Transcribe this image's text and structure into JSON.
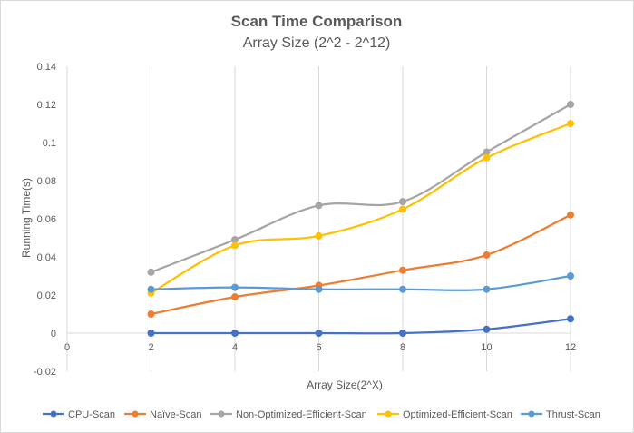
{
  "chart_data": {
    "type": "line",
    "title": "Scan Time Comparison",
    "subtitle": "Array Size (2^2 - 2^12)",
    "xlabel": "Array Size(2^X)",
    "ylabel": "Running Time(s)",
    "xlim": [
      0,
      12
    ],
    "ylim": [
      -0.02,
      0.14
    ],
    "x_ticks": [
      "0",
      "2",
      "4",
      "6",
      "8",
      "10",
      "12"
    ],
    "y_ticks": [
      "-0.02",
      "0",
      "0.02",
      "0.04",
      "0.06",
      "0.08",
      "0.1",
      "0.12",
      "0.14"
    ],
    "grid": "vertical",
    "legend_position": "bottom",
    "x": [
      2,
      4,
      6,
      8,
      10,
      12
    ],
    "series": [
      {
        "name": "CPU-Scan",
        "color": "#4472c4",
        "values": [
          0,
          0,
          0,
          0,
          0.002,
          0.0075
        ]
      },
      {
        "name": "Naïve-Scan",
        "color": "#ed7d31",
        "values": [
          0.01,
          0.019,
          0.025,
          0.033,
          0.041,
          0.062
        ]
      },
      {
        "name": "Non-Optimized-Efficient-Scan",
        "color": "#a5a5a5",
        "values": [
          0.032,
          0.049,
          0.067,
          0.069,
          0.095,
          0.12
        ]
      },
      {
        "name": "Optimized-Efficient-Scan",
        "color": "#ffc000",
        "values": [
          0.021,
          0.046,
          0.051,
          0.065,
          0.092,
          0.11
        ]
      },
      {
        "name": "Thrust-Scan",
        "color": "#5b9bd5",
        "values": [
          0.023,
          0.024,
          0.023,
          0.023,
          0.023,
          0.03
        ]
      }
    ]
  }
}
